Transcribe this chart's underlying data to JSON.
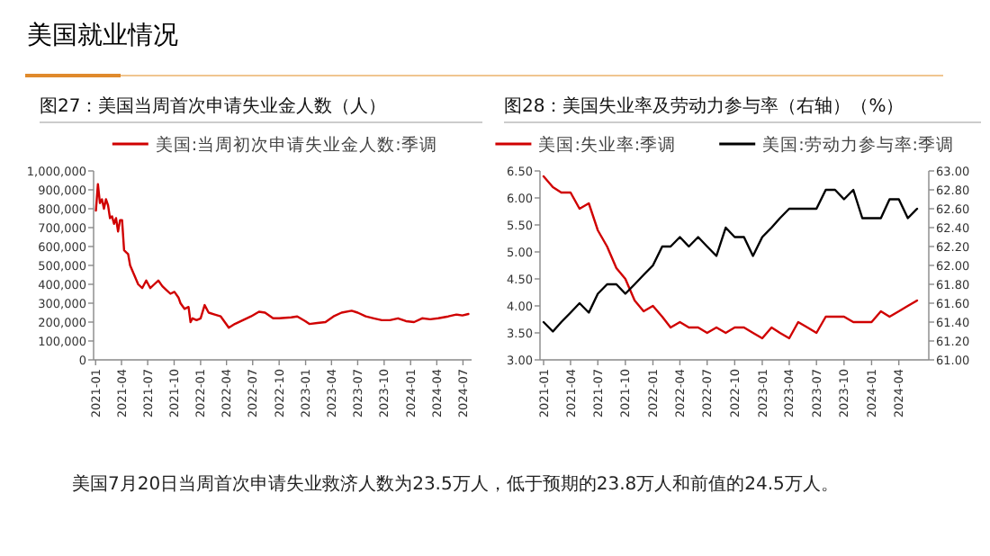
{
  "chart_data": [
    {
      "type": "other",
      "title": "美国就业情况",
      "annotations": [
        "美国7月20日当周首次申请失业救济人数为23.5万人，低于预期的23.8万人和前值的24.5万人。"
      ]
    },
    {
      "type": "line",
      "title": "图27：美国当周首次申请失业金人数（人）",
      "legend": "top",
      "marker": "none",
      "line_style": "solid",
      "x": [
        "2021-01-02",
        "2021-01-09",
        "2021-01-16",
        "2021-01-23",
        "2021-01-30",
        "2021-02-06",
        "2021-02-13",
        "2021-02-20",
        "2021-02-27",
        "2021-03-06",
        "2021-03-13",
        "2021-03-20",
        "2021-03-27",
        "2021-04-03",
        "2021-04-10",
        "2021-04-17",
        "2021-04-24",
        "2021-05-01",
        "2021-05-15",
        "2021-05-29",
        "2021-06-12",
        "2021-06-26",
        "2021-07-10",
        "2021-07-24",
        "2021-08-07",
        "2021-08-21",
        "2021-09-04",
        "2021-09-18",
        "2021-10-02",
        "2021-10-16",
        "2021-10-23",
        "2021-11-06",
        "2021-11-20",
        "2021-11-27",
        "2021-12-04",
        "2021-12-18",
        "2022-01-01",
        "2022-01-15",
        "2022-01-29",
        "2022-02-19",
        "2022-03-12",
        "2022-03-26",
        "2022-04-09",
        "2022-04-30",
        "2022-05-28",
        "2022-06-25",
        "2022-07-23",
        "2022-08-13",
        "2022-09-10",
        "2022-10-01",
        "2022-11-12",
        "2022-12-03",
        "2022-12-31",
        "2023-01-14",
        "2023-02-11",
        "2023-03-11",
        "2023-04-08",
        "2023-05-06",
        "2023-06-10",
        "2023-07-01",
        "2023-07-29",
        "2023-08-26",
        "2023-09-23",
        "2023-10-21",
        "2023-11-18",
        "2023-12-16",
        "2024-01-13",
        "2024-02-10",
        "2024-03-09",
        "2024-04-06",
        "2024-05-11",
        "2024-06-08",
        "2024-06-29",
        "2024-07-20"
      ],
      "series": [
        {
          "name": "美国:当周初次申请失业金人数:季调",
          "color": "#d00000",
          "values": [
            790000,
            930000,
            830000,
            850000,
            800000,
            850000,
            820000,
            750000,
            760000,
            720000,
            750000,
            680000,
            740000,
            740000,
            580000,
            570000,
            560000,
            500000,
            450000,
            400000,
            380000,
            420000,
            380000,
            400000,
            420000,
            390000,
            370000,
            350000,
            360000,
            330000,
            300000,
            270000,
            280000,
            200000,
            220000,
            210000,
            220000,
            290000,
            250000,
            240000,
            230000,
            200000,
            170000,
            190000,
            210000,
            230000,
            255000,
            250000,
            220000,
            220000,
            225000,
            230000,
            205000,
            190000,
            195000,
            200000,
            230000,
            250000,
            260000,
            250000,
            230000,
            220000,
            210000,
            210000,
            220000,
            205000,
            200000,
            220000,
            215000,
            220000,
            230000,
            240000,
            235000,
            243000
          ]
        }
      ],
      "xlim": [
        "2020-12-25",
        "2024-07-31"
      ],
      "xticks": [
        "2021-01",
        "2021-04",
        "2021-07",
        "2021-10",
        "2022-01",
        "2022-04",
        "2022-07",
        "2022-10",
        "2023-01",
        "2023-04",
        "2023-07",
        "2023-10",
        "2024-01",
        "2024-04",
        "2024-07"
      ],
      "ylim": [
        0,
        1000000
      ],
      "yticks": [
        0,
        {
          "value": 100000,
          "label": "100,000"
        },
        {
          "value": 200000,
          "label": "200,000"
        },
        {
          "value": 300000,
          "label": "300,000"
        },
        {
          "value": 400000,
          "label": "400,000"
        },
        {
          "value": 500000,
          "label": "500,000"
        },
        {
          "value": 600000,
          "label": "600,000"
        },
        {
          "value": 700000,
          "label": "700,000"
        },
        {
          "value": 800000,
          "label": "800,000"
        },
        {
          "value": 900000,
          "label": "900,000"
        },
        {
          "value": 1000000,
          "label": "1,000,000"
        }
      ]
    },
    {
      "type": "line",
      "title": "图28：美国失业率及劳动力参与率（右轴）（%）",
      "legend": "top",
      "marker": "none",
      "line_style": "solid",
      "x": [
        "2021-01",
        "2021-02",
        "2021-03",
        "2021-04",
        "2021-05",
        "2021-06",
        "2021-07",
        "2021-08",
        "2021-09",
        "2021-10",
        "2021-11",
        "2021-12",
        "2022-01",
        "2022-02",
        "2022-03",
        "2022-04",
        "2022-05",
        "2022-06",
        "2022-07",
        "2022-08",
        "2022-09",
        "2022-10",
        "2022-11",
        "2022-12",
        "2023-01",
        "2023-02",
        "2023-03",
        "2023-04",
        "2023-05",
        "2023-06",
        "2023-07",
        "2023-08",
        "2023-09",
        "2023-10",
        "2023-11",
        "2023-12",
        "2024-01",
        "2024-02",
        "2024-03",
        "2024-04",
        "2024-05",
        "2024-06"
      ],
      "series": [
        {
          "name": "美国:失业率:季调",
          "color": "#d00000",
          "values": [
            6.4,
            6.2,
            6.1,
            6.1,
            5.8,
            5.9,
            5.4,
            5.1,
            4.7,
            4.5,
            4.1,
            3.9,
            4.0,
            3.8,
            3.6,
            3.7,
            3.6,
            3.6,
            3.5,
            3.6,
            3.5,
            3.6,
            3.6,
            3.5,
            3.4,
            3.6,
            3.5,
            3.4,
            3.7,
            3.6,
            3.5,
            3.8,
            3.8,
            3.8,
            3.7,
            3.7,
            3.7,
            3.9,
            3.8,
            3.9,
            4.0,
            4.1
          ]
        },
        {
          "name": "美国:劳动力参与率:季调",
          "color": "#000000",
          "axis": "y2",
          "values": [
            61.4,
            61.3,
            61.4,
            61.5,
            61.6,
            61.5,
            61.7,
            61.8,
            61.8,
            61.7,
            61.8,
            61.9,
            62.0,
            62.2,
            62.2,
            62.3,
            62.2,
            62.3,
            62.2,
            62.1,
            62.4,
            62.3,
            62.3,
            62.1,
            62.3,
            62.4,
            62.5,
            62.6,
            62.6,
            62.6,
            62.6,
            62.8,
            62.8,
            62.7,
            62.8,
            62.5,
            62.5,
            62.5,
            62.7,
            62.7,
            62.5,
            62.6
          ]
        }
      ],
      "xlim": [
        "2020-12-20",
        "2024-07-10"
      ],
      "xticks": [
        "2021-01",
        "2021-04",
        "2021-07",
        "2021-10",
        "2022-01",
        "2022-04",
        "2022-07",
        "2022-10",
        "2023-01",
        "2023-04",
        "2023-07",
        "2023-10",
        "2024-01",
        "2024-04"
      ],
      "ylim": [
        3,
        6.5
      ],
      "yticks": [
        {
          "value": 3,
          "label": "3.00"
        },
        {
          "value": 3.5,
          "label": "3.50"
        },
        {
          "value": 4,
          "label": "4.00"
        },
        {
          "value": 4.5,
          "label": "4.50"
        },
        {
          "value": 5,
          "label": "5.00"
        },
        {
          "value": 5.5,
          "label": "5.50"
        },
        {
          "value": 6,
          "label": "6.00"
        },
        {
          "value": 6.5,
          "label": "6.50"
        }
      ],
      "y2lim": [
        61,
        63
      ],
      "y2ticks": [
        {
          "value": 61,
          "label": "61.00"
        },
        {
          "value": 61.2,
          "label": "61.20"
        },
        {
          "value": 61.4,
          "label": "61.40"
        },
        {
          "value": 61.6,
          "label": "61.60"
        },
        {
          "value": 61.8,
          "label": "61.80"
        },
        {
          "value": 62,
          "label": "62.00"
        },
        {
          "value": 62.2,
          "label": "62.20"
        },
        {
          "value": 62.4,
          "label": "62.40"
        },
        {
          "value": 62.6,
          "label": "62.60"
        },
        {
          "value": 62.8,
          "label": "62.80"
        },
        {
          "value": 63,
          "label": "63.00"
        }
      ]
    }
  ]
}
